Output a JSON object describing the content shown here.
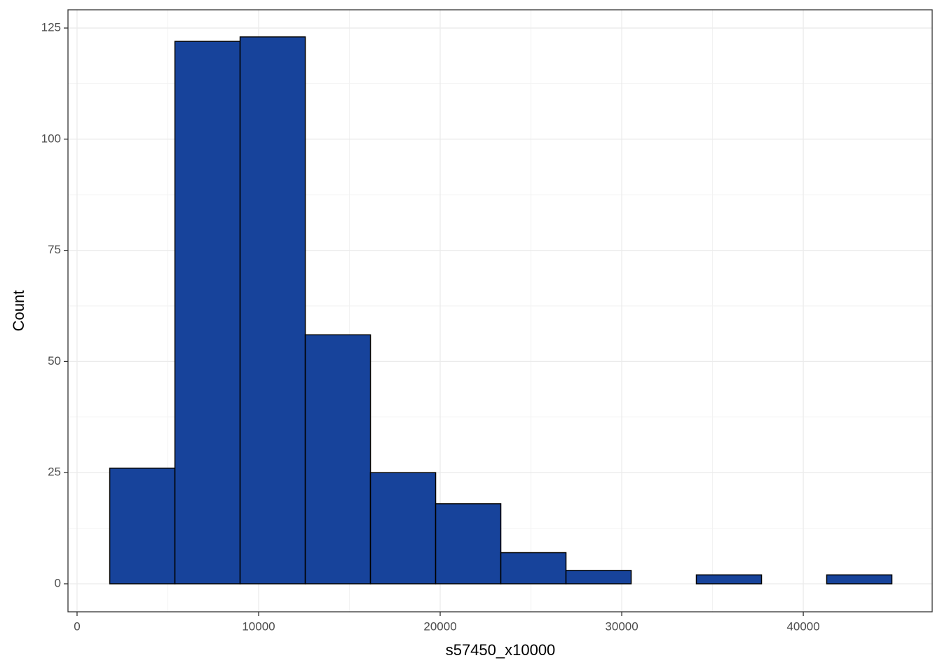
{
  "chart_data": {
    "type": "histogram",
    "x_label": "s57450_x10000",
    "y_label": "Count",
    "bins": [
      1800,
      5390,
      8980,
      12570,
      16160,
      19750,
      23340,
      26930,
      30520,
      34110,
      37700,
      41290,
      44880
    ],
    "values": [
      26,
      122,
      123,
      56,
      25,
      18,
      7,
      3,
      0,
      2,
      0,
      2
    ],
    "color": "#17439b",
    "edge_color": "#000000",
    "xlim": [
      -500,
      47100
    ],
    "xticks": [
      0,
      10000,
      20000,
      30000,
      40000
    ],
    "ylim": [
      -6.3,
      129.1
    ],
    "yticks": [
      0,
      25,
      50,
      75,
      100,
      125
    ],
    "grid": true,
    "minor_grid": true
  }
}
